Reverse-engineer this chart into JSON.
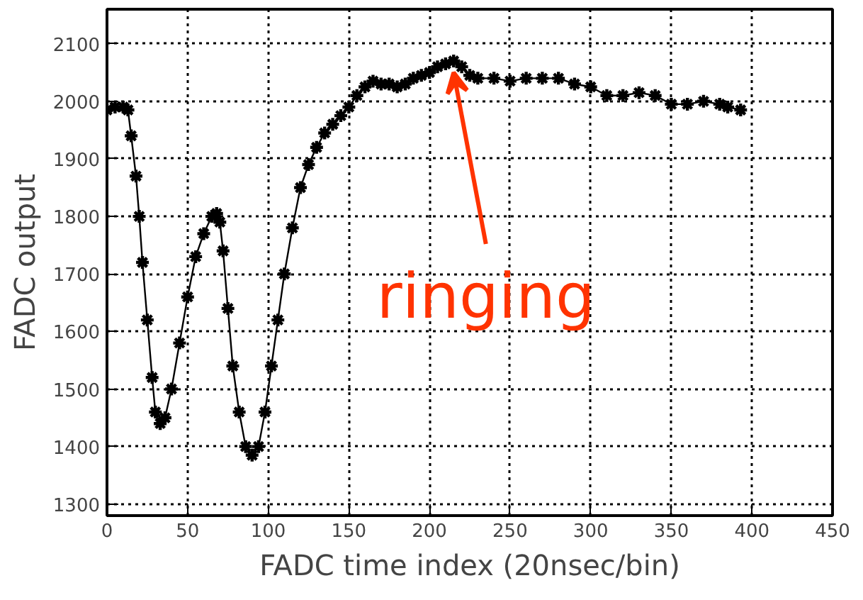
{
  "chart_data": {
    "type": "line",
    "xlabel": "FADC time index (20nsec/bin)",
    "ylabel": "FADC output",
    "xlim": [
      0,
      450
    ],
    "ylim": [
      1280,
      2160
    ],
    "xticks": [
      0,
      50,
      100,
      150,
      200,
      250,
      300,
      350,
      400,
      450
    ],
    "yticks": [
      1300,
      1400,
      1500,
      1600,
      1700,
      1800,
      1900,
      2000,
      2100
    ],
    "grid": true,
    "marker": "cross",
    "line_style": "solid",
    "annotations": [
      {
        "text": "ringing",
        "x": 215,
        "y": 2062
      }
    ],
    "series": [
      {
        "color": "#000000",
        "x": [
          0,
          5,
          10,
          13,
          15,
          18,
          20,
          22,
          25,
          28,
          30,
          33,
          36,
          40,
          45,
          50,
          55,
          60,
          65,
          68,
          70,
          72,
          75,
          78,
          82,
          86,
          90,
          94,
          98,
          102,
          106,
          110,
          115,
          120,
          125,
          130,
          135,
          140,
          145,
          150,
          155,
          160,
          165,
          170,
          175,
          180,
          185,
          190,
          195,
          200,
          205,
          210,
          215,
          220,
          225,
          230,
          240,
          250,
          260,
          270,
          280,
          290,
          300,
          310,
          320,
          330,
          340,
          350,
          360,
          370,
          380,
          385,
          393
        ],
        "values": [
          1985,
          1990,
          1990,
          1985,
          1940,
          1870,
          1800,
          1720,
          1620,
          1520,
          1460,
          1440,
          1450,
          1500,
          1580,
          1660,
          1730,
          1770,
          1800,
          1805,
          1790,
          1740,
          1640,
          1540,
          1460,
          1400,
          1385,
          1400,
          1460,
          1540,
          1620,
          1700,
          1780,
          1850,
          1890,
          1920,
          1945,
          1960,
          1975,
          1990,
          2010,
          2025,
          2035,
          2030,
          2030,
          2025,
          2030,
          2040,
          2045,
          2050,
          2060,
          2065,
          2070,
          2060,
          2045,
          2040,
          2040,
          2035,
          2040,
          2040,
          2040,
          2030,
          2025,
          2010,
          2010,
          2015,
          2010,
          1995,
          1995,
          2000,
          1995,
          1990,
          1985
        ]
      }
    ]
  }
}
